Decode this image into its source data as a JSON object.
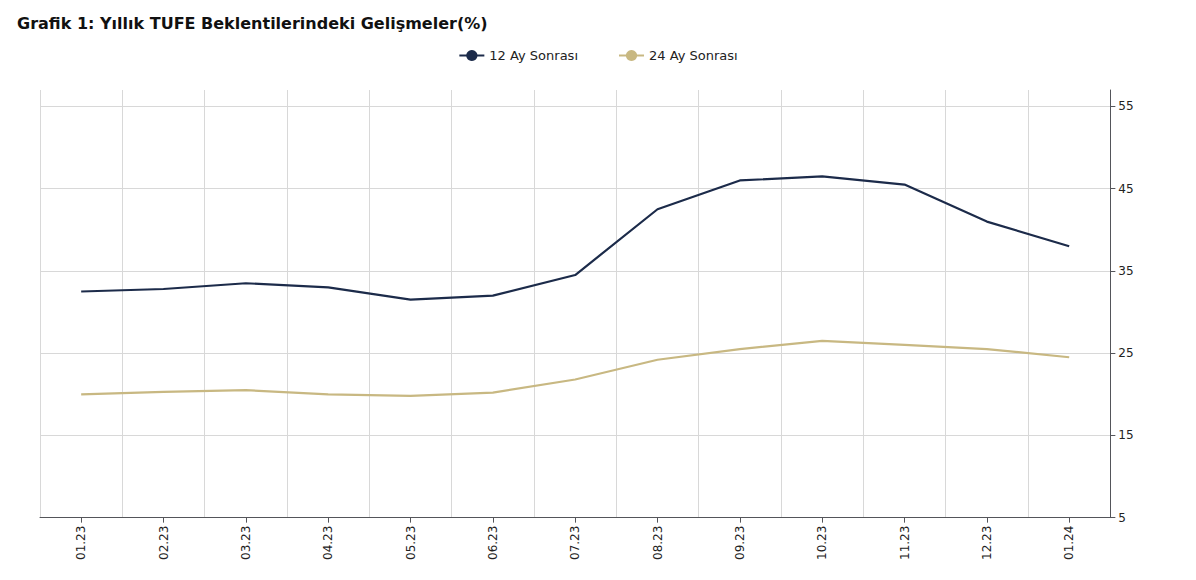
{
  "chart_data": {
    "type": "line",
    "title": "Grafik 1: Yıllık TUFE Beklentilerindeki Gelişmeler(%)",
    "categories": [
      "01.23",
      "02.23",
      "03.23",
      "04.23",
      "05.23",
      "06.23",
      "07.23",
      "08.23",
      "09.23",
      "10.23",
      "11.23",
      "12.23",
      "01.24"
    ],
    "series": [
      {
        "name": "12 Ay Sonrası",
        "color": "#1c2b4a",
        "values": [
          32.5,
          32.8,
          33.5,
          33.0,
          31.5,
          32.0,
          34.5,
          42.5,
          46.0,
          46.5,
          45.5,
          41.0,
          38.0
        ]
      },
      {
        "name": "24 Ay Sonrası",
        "color": "#c8b882",
        "values": [
          20.0,
          20.3,
          20.5,
          20.0,
          19.8,
          20.2,
          21.8,
          24.2,
          25.5,
          26.5,
          26.0,
          25.5,
          24.5
        ]
      }
    ],
    "ylim": [
      5,
      57
    ],
    "yticks": [
      5,
      15,
      25,
      35,
      45,
      55
    ],
    "grid": true,
    "legend": "top"
  }
}
